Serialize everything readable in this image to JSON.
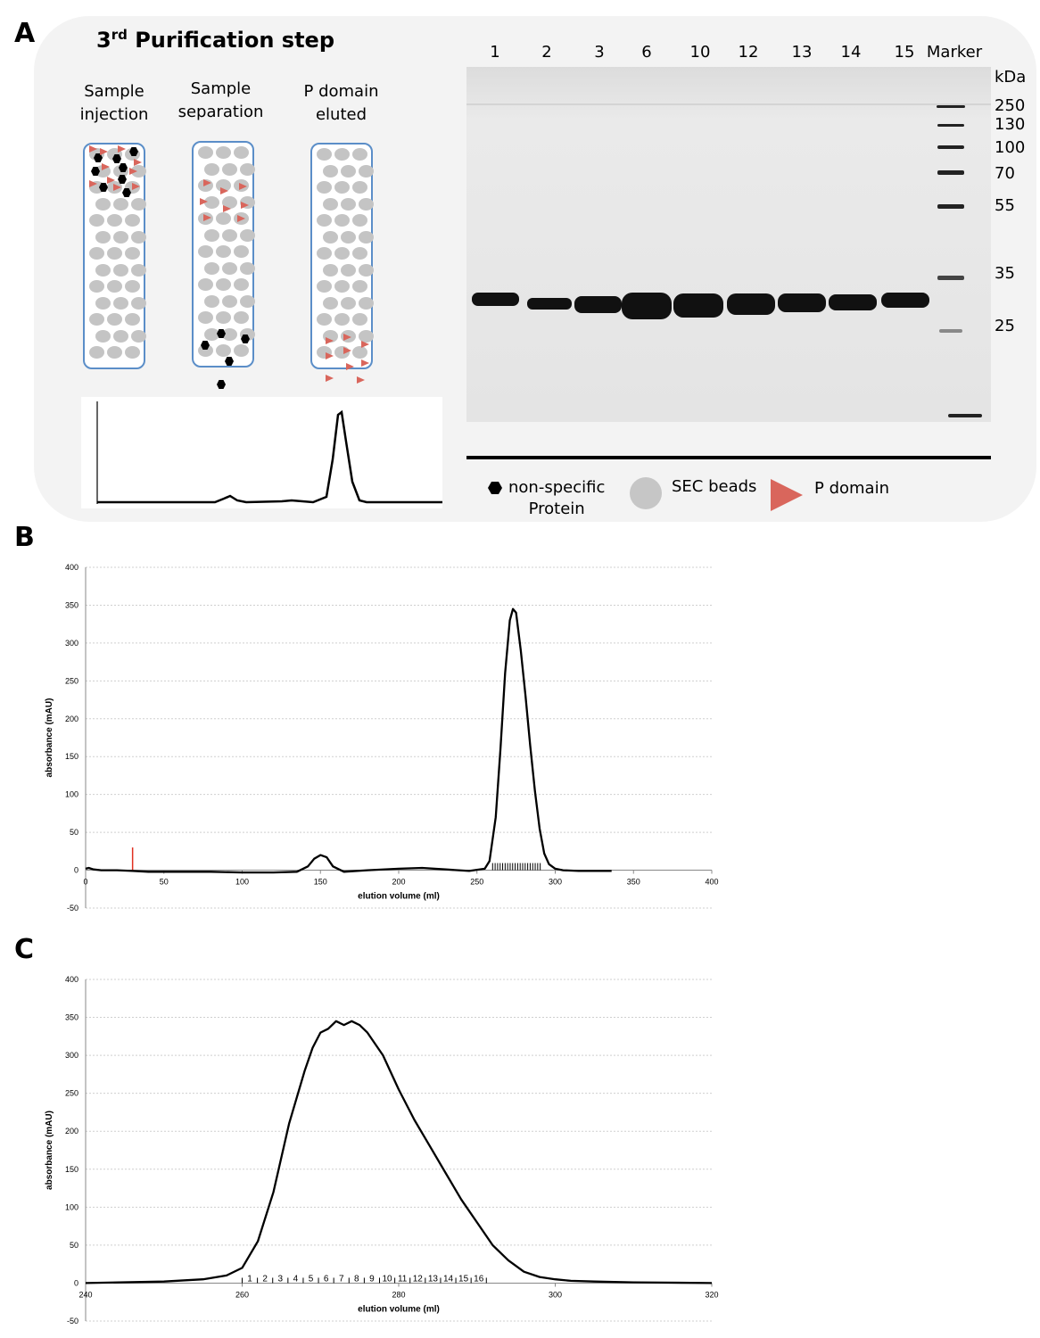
{
  "panels": {
    "a": "A",
    "b": "B",
    "c": "C"
  },
  "panel_a": {
    "title_prefix": "3",
    "title_sup": "rd",
    "title_rest": " Purification step",
    "column_labels": [
      {
        "line1": "Sample",
        "line2": "injection"
      },
      {
        "line1": "Sample",
        "line2": "separation"
      },
      {
        "line1": "P domain",
        "line2": "eluted"
      }
    ],
    "gel": {
      "lanes": [
        "1",
        "2",
        "3",
        "6",
        "10",
        "12",
        "13",
        "14",
        "15",
        "Marker"
      ],
      "mw_unit": "kDa",
      "mw_markers": [
        "250",
        "130",
        "100",
        "70",
        "55",
        "35",
        "25"
      ]
    },
    "legend": {
      "nonspecific_line1": "non-specific",
      "nonspecific_line2": "Protein",
      "beads": "SEC beads",
      "pdomain": "P domain"
    },
    "colors": {
      "column_border": "#5b8ec8",
      "bead": "#c4c4c4",
      "pdomain": "#d9665c",
      "red_marker": "#e03020"
    }
  },
  "chart_data": [
    {
      "panel": "B",
      "type": "line",
      "xlabel": "elution volume (ml)",
      "ylabel": "absorbance (mAU)",
      "xlim": [
        0,
        400
      ],
      "ylim": [
        -50,
        400
      ],
      "xticks": [
        0,
        50,
        100,
        150,
        200,
        250,
        300,
        350,
        400
      ],
      "yticks": [
        -50,
        0,
        50,
        100,
        150,
        200,
        250,
        300,
        350,
        400
      ],
      "grid": true,
      "injection_marker_x": 30,
      "fraction_ticks_range": [
        260,
        292
      ],
      "series": [
        {
          "x": [
            0,
            2,
            5,
            10,
            20,
            30,
            40,
            60,
            80,
            100,
            120,
            135,
            142,
            146,
            150,
            154,
            158,
            165,
            180,
            200,
            215,
            230,
            245,
            255,
            258,
            262,
            265,
            268,
            271,
            273,
            275,
            278,
            281,
            284,
            287,
            290,
            293,
            296,
            300,
            305,
            315,
            325,
            336
          ],
          "y": [
            2,
            3,
            1,
            0,
            0,
            -1,
            -2,
            -2,
            -2,
            -3,
            -3,
            -2,
            5,
            15,
            20,
            17,
            5,
            -2,
            0,
            2,
            3,
            1,
            -1,
            2,
            12,
            70,
            160,
            260,
            330,
            345,
            340,
            290,
            230,
            165,
            105,
            55,
            22,
            8,
            2,
            0,
            -1,
            -1,
            -1
          ]
        }
      ]
    },
    {
      "panel": "C",
      "type": "line",
      "xlabel": "elution volume (ml)",
      "ylabel": "absorbance (mAU)",
      "xlim": [
        240,
        320
      ],
      "ylim": [
        -50,
        400
      ],
      "xticks": [
        240,
        260,
        280,
        300,
        320
      ],
      "yticks": [
        -50,
        0,
        50,
        100,
        150,
        200,
        250,
        300,
        350,
        400
      ],
      "grid": true,
      "fractions": [
        "1",
        "2",
        "3",
        "4",
        "5",
        "6",
        "7",
        "8",
        "9",
        "10",
        "11",
        "12",
        "13",
        "14",
        "15",
        "16"
      ],
      "series": [
        {
          "x": [
            240,
            250,
            255,
            258,
            260,
            262,
            264,
            266,
            268,
            269,
            270,
            271,
            272,
            273,
            274,
            275,
            276,
            278,
            280,
            282,
            284,
            286,
            288,
            290,
            292,
            294,
            296,
            298,
            300,
            302,
            305,
            310,
            320
          ],
          "y": [
            0,
            2,
            5,
            10,
            20,
            55,
            120,
            210,
            280,
            310,
            330,
            335,
            345,
            340,
            345,
            340,
            330,
            300,
            255,
            215,
            180,
            145,
            110,
            80,
            50,
            30,
            15,
            8,
            5,
            3,
            2,
            1,
            0
          ]
        }
      ]
    }
  ]
}
